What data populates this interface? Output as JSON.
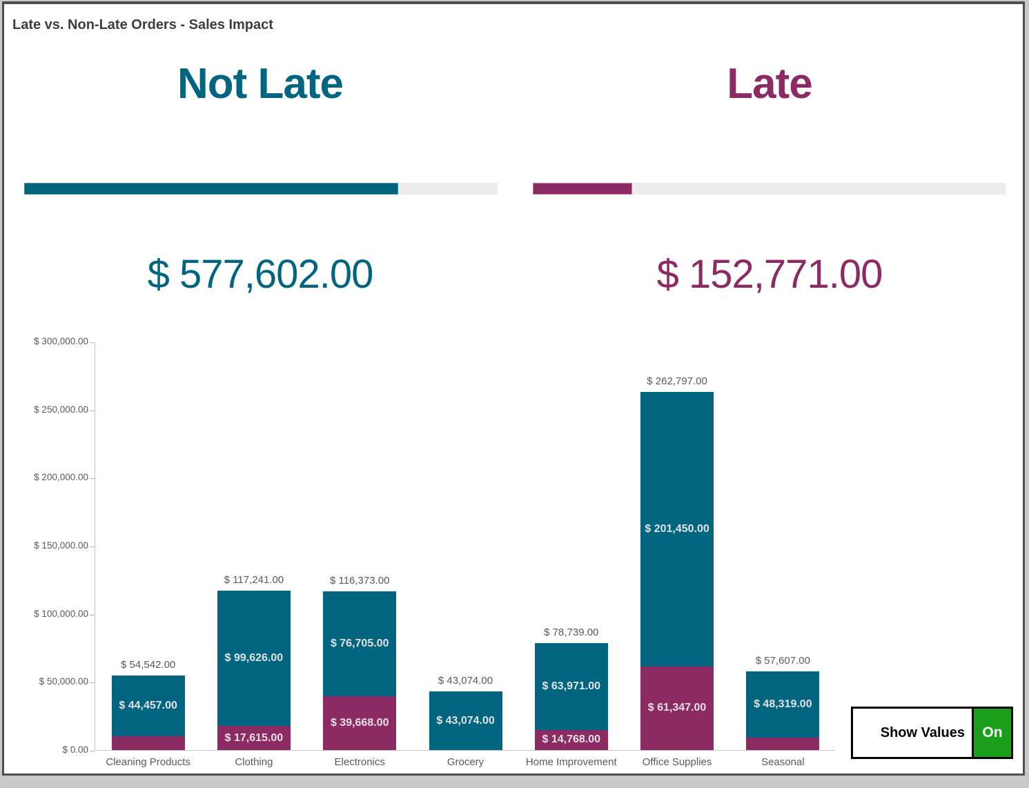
{
  "window": {
    "title": "Late vs. Non-Late Orders - Sales Impact"
  },
  "kpis": {
    "not_late": {
      "label": "Not Late",
      "value": "$ 577,602.00",
      "color": "#01657f",
      "progress_pct": 79
    },
    "late": {
      "label": "Late",
      "value": "$ 152,771.00",
      "color": "#8c2a64",
      "progress_pct": 21
    }
  },
  "toggle": {
    "label": "Show Values",
    "state": "On",
    "on_color": "#1b9e1b"
  },
  "chart_data": {
    "type": "bar",
    "stacked": true,
    "grid": false,
    "legend": "none",
    "ylim": [
      0,
      300000
    ],
    "y_ticks": [
      {
        "value": 300000,
        "label": "$ 300,000.00"
      },
      {
        "value": 250000,
        "label": "$ 250,000.00"
      },
      {
        "value": 200000,
        "label": "$ 200,000.00"
      },
      {
        "value": 150000,
        "label": "$ 150,000.00"
      },
      {
        "value": 100000,
        "label": "$ 100,000.00"
      },
      {
        "value": 50000,
        "label": "$ 50,000.00"
      },
      {
        "value": 0,
        "label": "$ 0.00"
      }
    ],
    "categories": [
      "Cleaning Products",
      "Clothing",
      "Electronics",
      "Grocery",
      "Home Improvement",
      "Office Supplies",
      "Seasonal"
    ],
    "series": [
      {
        "name": "Late",
        "color": "#8c2a64",
        "values": [
          10085,
          17615,
          39668,
          0,
          14768,
          61347,
          9288
        ],
        "labels": [
          null,
          "$ 17,615.00",
          "$ 39,668.00",
          null,
          "$ 14,768.00",
          "$ 61,347.00",
          null
        ]
      },
      {
        "name": "Not Late",
        "color": "#01657f",
        "values": [
          44457,
          99626,
          76705,
          43074,
          63971,
          201450,
          48319
        ],
        "labels": [
          "$ 44,457.00",
          "$ 99,626.00",
          "$ 76,705.00",
          "$ 43,074.00",
          "$ 63,971.00",
          "$ 201,450.00",
          "$ 48,319.00"
        ]
      }
    ],
    "totals": {
      "values": [
        54542,
        117241,
        116373,
        43074,
        78739,
        262797,
        57607
      ],
      "labels": [
        "$ 54,542.00",
        "$ 117,241.00",
        "$ 116,373.00",
        "$ 43,074.00",
        "$ 78,739.00",
        "$ 262,797.00",
        "$ 57,607.00"
      ]
    }
  }
}
